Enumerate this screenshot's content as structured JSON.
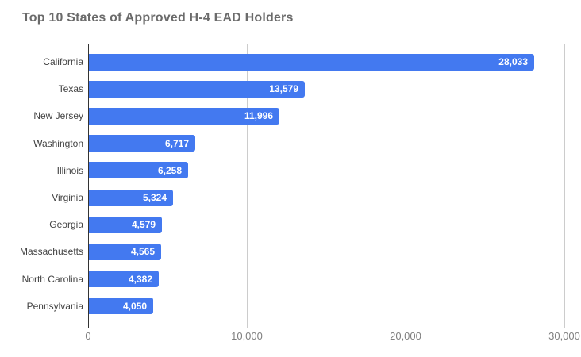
{
  "title": "Top 10 States of Approved H-4 EAD Holders",
  "colors": {
    "bar": "#4379f0",
    "title_text": "#6b6b6b",
    "category_text": "#424242",
    "value_text": "#ffffff",
    "gridline": "#cccccc",
    "axis_baseline": "#333333",
    "tick_text": "#808080",
    "background": "#ffffff"
  },
  "chart_data": {
    "type": "bar",
    "orientation": "horizontal",
    "title": "Top 10 States of Approved H-4 EAD Holders",
    "categories": [
      "California",
      "Texas",
      "New Jersey",
      "Washington",
      "Illinois",
      "Virginia",
      "Georgia",
      "Massachusetts",
      "North Carolina",
      "Pennsylvania"
    ],
    "values": [
      28033,
      13579,
      11996,
      6717,
      6258,
      5324,
      4579,
      4565,
      4382,
      4050
    ],
    "value_labels": [
      "28,033",
      "13,579",
      "11,996",
      "6,717",
      "6,258",
      "5,324",
      "4,579",
      "4,565",
      "4,382",
      "4,050"
    ],
    "xlabel": "",
    "ylabel": "",
    "xlim": [
      0,
      30000
    ],
    "x_ticks": [
      0,
      10000,
      20000,
      30000
    ],
    "x_tick_labels": [
      "0",
      "10,000",
      "20,000",
      "30,000"
    ],
    "grid": true,
    "legend_position": "none",
    "value_labels_position": "inside-end"
  }
}
